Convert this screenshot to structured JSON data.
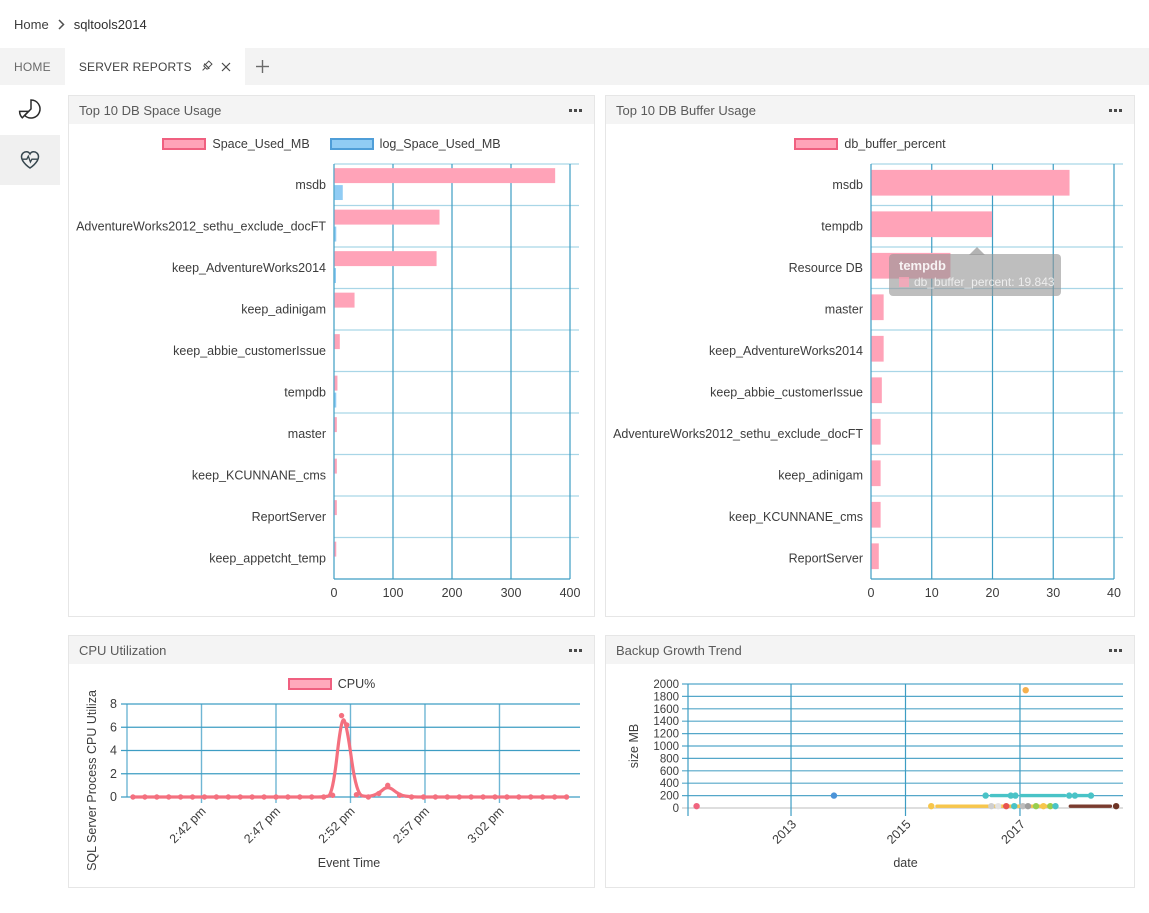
{
  "breadcrumb": {
    "items": [
      "Home",
      "sqltools2014"
    ]
  },
  "tabs": {
    "home_label": "HOME",
    "active_label": "SERVER REPORTS"
  },
  "sidebar": {
    "items": [
      {
        "icon": "pie-chart-icon"
      },
      {
        "icon": "heart-pulse-icon",
        "selected": true
      }
    ]
  },
  "panels": [
    {
      "title": "Top 10 DB Space Usage"
    },
    {
      "title": "Top 10 DB Buffer Usage"
    },
    {
      "title": "CPU Utilization"
    },
    {
      "title": "Backup Growth Trend"
    }
  ],
  "tooltip": {
    "title": "tempdb",
    "text": "db_buffer_percent: 19.843"
  },
  "chart_data": [
    {
      "type": "bar",
      "orientation": "horizontal",
      "title": "Top 10 DB Space Usage",
      "grid_dark": "#3D9DC3",
      "grid_light": "#A9D6E7",
      "categories": [
        "msdb",
        "AdventureWorks2012_sethu_exclude_docFT",
        "keep_AdventureWorks2014",
        "keep_adinigam",
        "keep_abbie_customerIssue",
        "tempdb",
        "master",
        "keep_KCUNNANE_cms",
        "ReportServer",
        "keep_appetcht_temp"
      ],
      "series": [
        {
          "name": "Space_Used_MB",
          "fill": "#FFA3B8",
          "border": "#F06080",
          "values": [
            374,
            178,
            173,
            34,
            9,
            5,
            4,
            4,
            4,
            3
          ]
        },
        {
          "name": "log_Space_Used_MB",
          "fill": "#90CCF4",
          "border": "#4F9ED8",
          "values": [
            14,
            3,
            2,
            0,
            0,
            3,
            0,
            0,
            0,
            0
          ]
        }
      ],
      "xticks": [
        0,
        100,
        200,
        300,
        400
      ],
      "xlim": [
        0,
        400
      ],
      "legend_position": "top"
    },
    {
      "type": "bar",
      "orientation": "horizontal",
      "title": "Top 10 DB Buffer Usage",
      "grid_dark": "#3D9DC3",
      "grid_light": "#A9D6E7",
      "categories": [
        "msdb",
        "tempdb",
        "Resource DB",
        "master",
        "keep_AdventureWorks2014",
        "keep_abbie_customerIssue",
        "AdventureWorks2012_sethu_exclude_docFT",
        "keep_adinigam",
        "keep_KCUNNANE_cms",
        "ReportServer"
      ],
      "series": [
        {
          "name": "db_buffer_percent",
          "fill": "#FFA3B8",
          "border": "#F06080",
          "values": [
            32.6,
            19.843,
            13,
            2,
            2,
            1.7,
            1.5,
            1.5,
            1.5,
            1.2
          ]
        }
      ],
      "xticks": [
        0,
        10,
        20,
        30,
        40
      ],
      "xlim": [
        0,
        40
      ],
      "legend_position": "top",
      "hover_tooltip": {
        "category": "tempdb",
        "series": "db_buffer_percent",
        "value": 19.843
      }
    },
    {
      "type": "line",
      "title": "CPU Utilization",
      "series_name": "CPU%",
      "line_color": "#F4707F",
      "legend_fill": "#FFA9BC",
      "legend_border": "#F06080",
      "grid_dark": "#3D9DC3",
      "grid_light": "#6FB6D4",
      "xlabel": "Event Time",
      "ylabel": "SQL Server Process CPU Utiliza",
      "x_unit": "minutes, 0 = 2:37 pm",
      "xticks": [
        {
          "x": 5,
          "label": "2:42 pm"
        },
        {
          "x": 10,
          "label": "2:47 pm"
        },
        {
          "x": 15,
          "label": "2:52 pm"
        },
        {
          "x": 20,
          "label": "2:57 pm"
        },
        {
          "x": 25,
          "label": "3:02 pm"
        }
      ],
      "yticks": [
        0,
        2,
        4,
        6,
        8
      ],
      "xlim": [
        0,
        29.8
      ],
      "ylim": [
        0,
        8
      ],
      "samples": [
        [
          0.4,
          0
        ],
        [
          1.2,
          0
        ],
        [
          2,
          0
        ],
        [
          2.8,
          0
        ],
        [
          3.6,
          0
        ],
        [
          4.4,
          0
        ],
        [
          5.2,
          0
        ],
        [
          6,
          0
        ],
        [
          6.8,
          0
        ],
        [
          7.6,
          0
        ],
        [
          8.4,
          0
        ],
        [
          9.2,
          0
        ],
        [
          10,
          0
        ],
        [
          10.8,
          0
        ],
        [
          11.6,
          0
        ],
        [
          12.4,
          0
        ],
        [
          13.2,
          0
        ],
        [
          13.8,
          0.15
        ],
        [
          14.4,
          7
        ],
        [
          14.75,
          6.2
        ],
        [
          15.4,
          0.2
        ],
        [
          16.2,
          0
        ],
        [
          16.9,
          0.3
        ],
        [
          17.5,
          1
        ],
        [
          18.3,
          0.15
        ],
        [
          19.1,
          0
        ],
        [
          19.9,
          0
        ],
        [
          20.7,
          0
        ],
        [
          21.5,
          0
        ],
        [
          22.3,
          0
        ],
        [
          23.1,
          0
        ],
        [
          23.9,
          0
        ],
        [
          24.7,
          0
        ],
        [
          25.5,
          0
        ],
        [
          26.3,
          0
        ],
        [
          27.1,
          0
        ],
        [
          27.9,
          0
        ],
        [
          28.7,
          0
        ],
        [
          29.5,
          0
        ]
      ]
    },
    {
      "type": "scatter",
      "title": "Backup Growth Trend",
      "grid_dark": "#3D9DC3",
      "grid_mid": "#55A7C9",
      "zero_line": "#C9C9C9",
      "xlabel": "date",
      "ylabel": "size MB",
      "xticks": [
        2013,
        2015,
        2017
      ],
      "yticks": [
        0,
        200,
        400,
        600,
        800,
        1000,
        1200,
        1400,
        1600,
        1800,
        2000
      ],
      "xlim": [
        2011.2,
        2018.8
      ],
      "ylim": [
        0,
        2000
      ],
      "points": [
        {
          "x": 2011.35,
          "y": 30,
          "color": "#F0647E"
        },
        {
          "x": 2013.75,
          "y": 200,
          "color": "#4B93D8"
        },
        {
          "x": 2017.1,
          "y": 1900,
          "color": "#F6B04E"
        },
        {
          "x": 2016.4,
          "y": 200,
          "color": "#49C3C7"
        },
        {
          "x": 2016.84,
          "y": 200,
          "color": "#49C3C7"
        },
        {
          "x": 2016.92,
          "y": 200,
          "color": "#49C3C7"
        },
        {
          "x": 2017.86,
          "y": 200,
          "color": "#49C3C7"
        },
        {
          "x": 2017.96,
          "y": 200,
          "color": "#49C3C7"
        },
        {
          "x": 2018.24,
          "y": 200,
          "color": "#49C3C7"
        },
        {
          "x": 2015.45,
          "y": 30,
          "color": "#F7C64B"
        },
        {
          "x": 2016.5,
          "y": 30,
          "color": "#CFCFCF"
        },
        {
          "x": 2016.62,
          "y": 30,
          "color": "#E3E3E3"
        },
        {
          "x": 2016.76,
          "y": 30,
          "color": "#E8534E"
        },
        {
          "x": 2016.9,
          "y": 30,
          "color": "#49C3C7"
        },
        {
          "x": 2017.05,
          "y": 30,
          "color": "#BDBDBD"
        },
        {
          "x": 2017.14,
          "y": 30,
          "color": "#9E9E9E"
        },
        {
          "x": 2017.28,
          "y": 30,
          "color": "#97CE4D"
        },
        {
          "x": 2017.41,
          "y": 30,
          "color": "#F7C64B"
        },
        {
          "x": 2017.53,
          "y": 30,
          "color": "#97CE4D"
        },
        {
          "x": 2017.62,
          "y": 30,
          "color": "#49C3C7"
        },
        {
          "x": 2018.68,
          "y": 30,
          "color": "#6E3425"
        }
      ],
      "segments": [
        {
          "x1": 2016.5,
          "x2": 2016.8,
          "y": 200,
          "color": "#49C3C7"
        },
        {
          "x1": 2017.02,
          "x2": 2017.78,
          "y": 200,
          "color": "#49C3C7"
        },
        {
          "x1": 2018.02,
          "x2": 2018.18,
          "y": 200,
          "color": "#49C3C7"
        },
        {
          "x1": 2015.55,
          "x2": 2017.58,
          "y": 30,
          "color": "#F7C64B"
        },
        {
          "x1": 2017.88,
          "x2": 2018.58,
          "y": 30,
          "color": "#7A3B2E"
        }
      ]
    }
  ]
}
